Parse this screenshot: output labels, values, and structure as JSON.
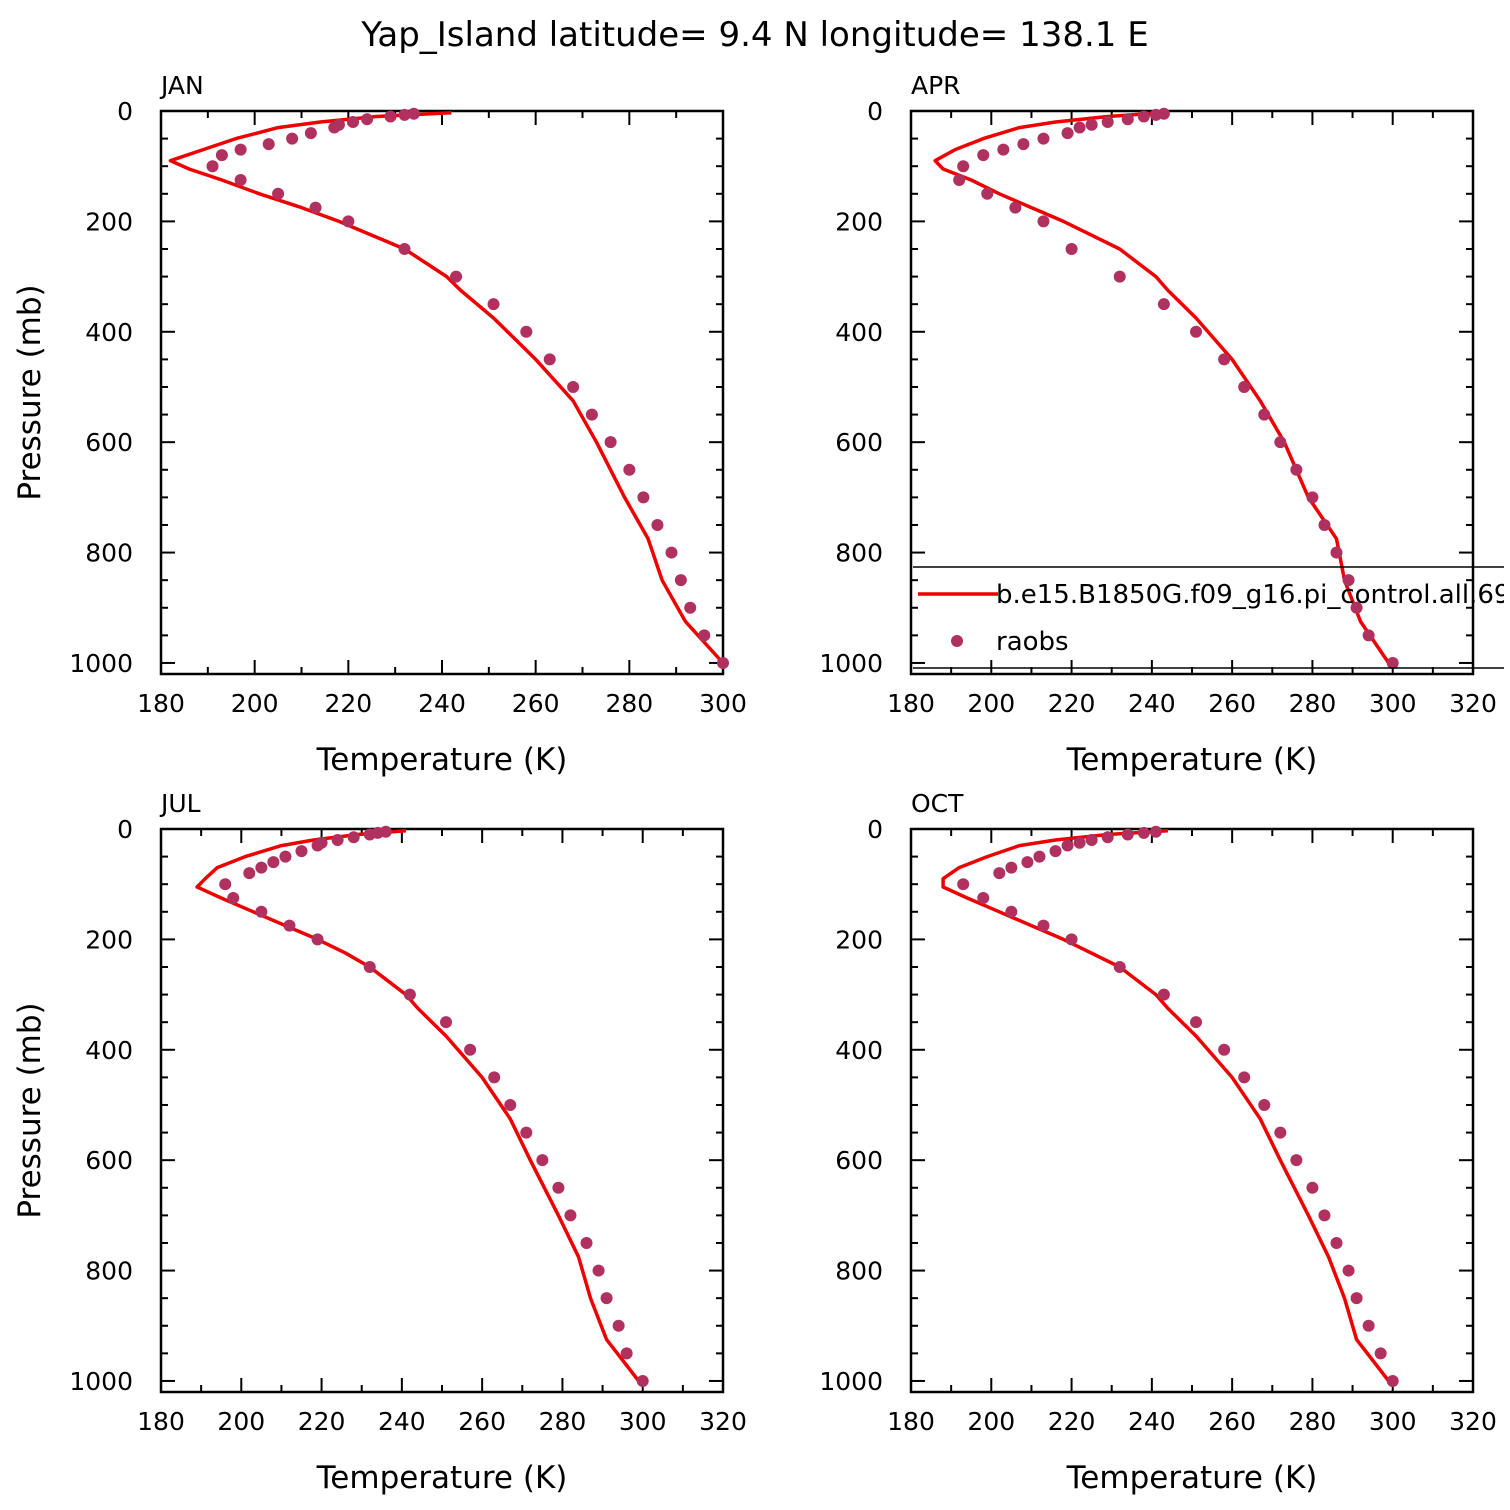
{
  "title": "Yap_Island   latitude=  9.4 N  longitude=  138.1 E",
  "chart_data": [
    {
      "type": "line",
      "panel": "JAN",
      "xlabel": "Temperature (K)",
      "ylabel": "Pressure (mb)",
      "xlim": [
        180,
        300
      ],
      "ylim": [
        1020,
        0
      ],
      "xticks": [
        180,
        200,
        220,
        240,
        260,
        280,
        300
      ],
      "yticks": [
        0,
        200,
        400,
        600,
        800,
        1000
      ],
      "grid": false,
      "model": {
        "pressure": [
          3,
          10,
          20,
          30,
          50,
          70,
          90,
          105,
          125,
          150,
          175,
          200,
          225,
          250,
          300,
          325,
          375,
          450,
          525,
          600,
          700,
          775,
          850,
          925,
          1000
        ],
        "temperature": [
          242,
          226,
          214,
          205,
          196,
          189,
          182,
          186,
          193,
          201,
          210,
          218,
          225,
          232,
          241,
          244,
          251,
          260,
          268,
          273,
          279,
          284,
          287,
          292,
          300
        ]
      },
      "raobs": {
        "pressure": [
          5,
          7,
          10,
          15,
          20,
          25,
          30,
          40,
          50,
          60,
          70,
          80,
          100,
          125,
          150,
          175,
          200,
          250,
          300,
          350,
          400,
          450,
          500,
          550,
          600,
          650,
          700,
          750,
          800,
          850,
          900,
          950,
          1000
        ],
        "temperature": [
          234,
          232,
          229,
          224,
          221,
          218,
          217,
          212,
          208,
          203,
          197,
          193,
          191,
          197,
          205,
          213,
          220,
          232,
          243,
          251,
          258,
          263,
          268,
          272,
          276,
          280,
          283,
          286,
          289,
          291,
          293,
          296,
          300
        ]
      }
    },
    {
      "type": "line",
      "panel": "APR",
      "xlabel": "Temperature (K)",
      "ylabel": "",
      "xlim": [
        180,
        320
      ],
      "ylim": [
        1020,
        0
      ],
      "xticks": [
        180,
        200,
        220,
        240,
        260,
        280,
        300,
        320
      ],
      "yticks": [
        0,
        200,
        400,
        600,
        800,
        1000
      ],
      "grid": false,
      "model": {
        "pressure": [
          3,
          10,
          20,
          30,
          50,
          70,
          90,
          105,
          125,
          150,
          175,
          200,
          225,
          250,
          300,
          325,
          375,
          450,
          525,
          600,
          700,
          775,
          850,
          925,
          1000
        ],
        "temperature": [
          243,
          229,
          216,
          207,
          198,
          191,
          186,
          188,
          195,
          202,
          210,
          218,
          225,
          232,
          241,
          244,
          251,
          260,
          267,
          273,
          279,
          286,
          288,
          292,
          299
        ]
      },
      "raobs": {
        "pressure": [
          5,
          7,
          10,
          15,
          20,
          25,
          30,
          40,
          50,
          60,
          70,
          80,
          100,
          125,
          150,
          175,
          200,
          250,
          300,
          350,
          400,
          450,
          500,
          550,
          600,
          650,
          700,
          750,
          800,
          850,
          900,
          950,
          1000
        ],
        "temperature": [
          243,
          241,
          238,
          234,
          229,
          225,
          222,
          219,
          213,
          208,
          203,
          198,
          193,
          192,
          199,
          206,
          213,
          220,
          232,
          243,
          251,
          258,
          263,
          268,
          272,
          276,
          280,
          283,
          286,
          289,
          291,
          294,
          300
        ]
      },
      "legend": {
        "position": "bottom-right",
        "entries": [
          {
            "label": "b.e15.B1850G.f09_g16.pi_control.all.69",
            "marker": "line"
          },
          {
            "label": "raobs",
            "marker": "dot"
          }
        ]
      }
    },
    {
      "type": "line",
      "panel": "JUL",
      "xlabel": "Temperature (K)",
      "ylabel": "Pressure (mb)",
      "xlim": [
        180,
        320
      ],
      "ylim": [
        1020,
        0
      ],
      "xticks": [
        180,
        200,
        220,
        240,
        260,
        280,
        300,
        320
      ],
      "yticks": [
        0,
        200,
        400,
        600,
        800,
        1000
      ],
      "grid": false,
      "model": {
        "pressure": [
          3,
          10,
          20,
          30,
          50,
          70,
          90,
          105,
          125,
          150,
          175,
          200,
          225,
          250,
          300,
          325,
          375,
          450,
          525,
          600,
          700,
          775,
          850,
          925,
          1000
        ],
        "temperature": [
          241,
          229,
          218,
          210,
          201,
          194,
          191,
          189,
          195,
          203,
          211,
          219,
          226,
          232,
          241,
          244,
          251,
          260,
          267,
          272,
          279,
          284,
          287,
          291,
          299
        ]
      },
      "raobs": {
        "pressure": [
          5,
          7,
          10,
          15,
          20,
          25,
          30,
          40,
          50,
          60,
          70,
          80,
          100,
          125,
          150,
          175,
          200,
          250,
          300,
          350,
          400,
          450,
          500,
          550,
          600,
          650,
          700,
          750,
          800,
          850,
          900,
          950,
          1000
        ],
        "temperature": [
          236,
          234,
          232,
          228,
          224,
          220,
          219,
          215,
          211,
          208,
          205,
          202,
          196,
          198,
          205,
          212,
          219,
          232,
          242,
          251,
          257,
          263,
          267,
          271,
          275,
          279,
          282,
          286,
          289,
          291,
          294,
          296,
          300
        ]
      }
    },
    {
      "type": "line",
      "panel": "OCT",
      "xlabel": "Temperature (K)",
      "ylabel": "",
      "xlim": [
        180,
        320
      ],
      "ylim": [
        1020,
        0
      ],
      "xticks": [
        180,
        200,
        220,
        240,
        260,
        280,
        300,
        320
      ],
      "yticks": [
        0,
        200,
        400,
        600,
        800,
        1000
      ],
      "grid": false,
      "model": {
        "pressure": [
          3,
          10,
          20,
          30,
          50,
          70,
          90,
          105,
          125,
          150,
          175,
          200,
          225,
          250,
          300,
          325,
          375,
          450,
          525,
          600,
          700,
          775,
          850,
          925,
          1000
        ],
        "temperature": [
          244,
          229,
          216,
          207,
          199,
          192,
          188,
          188,
          194,
          202,
          210,
          218,
          225,
          232,
          241,
          244,
          251,
          260,
          267,
          272,
          279,
          284,
          288,
          291,
          299
        ]
      },
      "raobs": {
        "pressure": [
          5,
          7,
          10,
          15,
          20,
          25,
          30,
          40,
          50,
          60,
          70,
          80,
          100,
          125,
          150,
          175,
          200,
          250,
          300,
          350,
          400,
          450,
          500,
          550,
          600,
          650,
          700,
          750,
          800,
          850,
          900,
          950,
          1000
        ],
        "temperature": [
          241,
          238,
          234,
          229,
          225,
          222,
          219,
          216,
          212,
          209,
          205,
          202,
          193,
          198,
          205,
          213,
          220,
          232,
          243,
          251,
          258,
          263,
          268,
          272,
          276,
          280,
          283,
          286,
          289,
          291,
          294,
          297,
          300
        ]
      }
    }
  ],
  "colors": {
    "model_line": "#ee0000",
    "raobs_dot": "#b03060",
    "axes": "#000000"
  }
}
